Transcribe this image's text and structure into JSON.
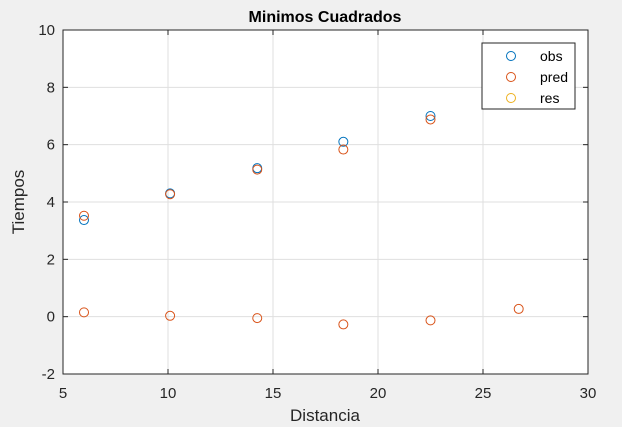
{
  "chart_data": {
    "type": "scatter",
    "title": "Minimos Cuadrados",
    "xlabel": "Distancia",
    "ylabel": "Tiempos",
    "xlim": [
      5,
      30
    ],
    "ylim": [
      -2,
      10
    ],
    "xticks": [
      "5",
      "10",
      "15",
      "20",
      "25",
      "30"
    ],
    "yticks": [
      "-2",
      "0",
      "2",
      "4",
      "6",
      "8",
      "10"
    ],
    "grid": true,
    "legend_position": "top-right",
    "series": [
      {
        "name": "obs",
        "color": "#0072bd",
        "marker": "circle-open",
        "x": [
          6.0,
          10.1,
          14.25,
          18.35,
          22.5
        ],
        "y": [
          3.37,
          4.3,
          5.18,
          6.1,
          7.0
        ]
      },
      {
        "name": "pred",
        "color": "#d95319",
        "marker": "circle-open",
        "x": [
          6.0,
          10.1,
          14.25,
          18.35,
          22.5
        ],
        "y": [
          3.52,
          4.27,
          5.13,
          5.83,
          6.88
        ]
      },
      {
        "name": "res",
        "color": "#edb120",
        "marker": "circle-open",
        "x": [],
        "y": []
      },
      {
        "name": "",
        "color": "#d95319",
        "marker": "circle-open",
        "x": [
          6.0,
          10.1,
          14.25,
          18.35,
          22.5,
          26.7
        ],
        "y": [
          0.15,
          0.03,
          -0.05,
          -0.27,
          -0.13,
          0.27
        ]
      }
    ]
  }
}
